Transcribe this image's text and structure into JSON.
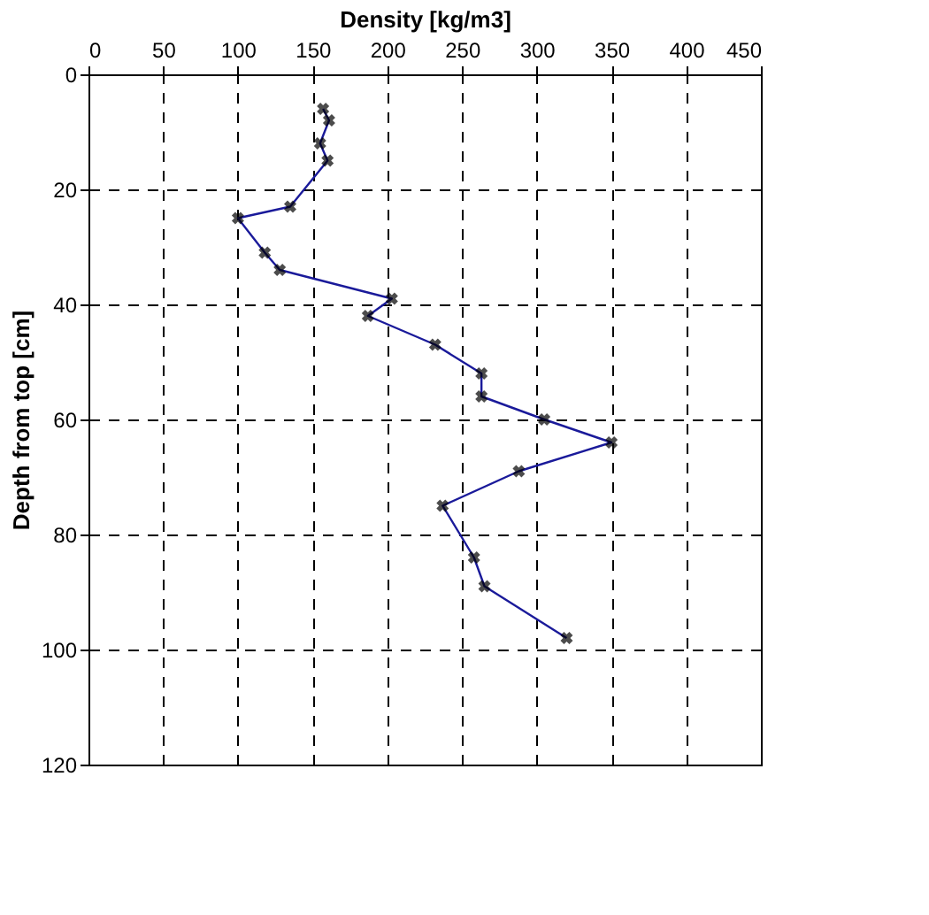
{
  "chart_data": {
    "type": "line",
    "xlabel": "Density [kg/m3]",
    "ylabel": "Depth from top [cm]",
    "x": [
      157,
      161,
      155,
      160,
      135,
      100,
      118,
      128,
      203,
      187,
      232,
      263,
      263,
      305,
      350,
      288,
      237,
      258,
      265,
      320
    ],
    "series": [
      {
        "color": "#1a1a9a",
        "values": [
          6,
          8,
          12,
          15,
          23,
          25,
          31,
          34,
          39,
          42,
          47,
          52,
          56,
          60,
          64,
          69,
          75,
          84,
          89,
          98
        ]
      }
    ],
    "xlim": [
      0,
      450
    ],
    "xticks": [
      0,
      50,
      100,
      150,
      200,
      250,
      300,
      350,
      400,
      450
    ],
    "ylim": [
      120,
      0
    ],
    "yticks": [
      0,
      20,
      40,
      60,
      80,
      100,
      120
    ],
    "grid": true,
    "marker": "cross",
    "line_style": "solid"
  }
}
